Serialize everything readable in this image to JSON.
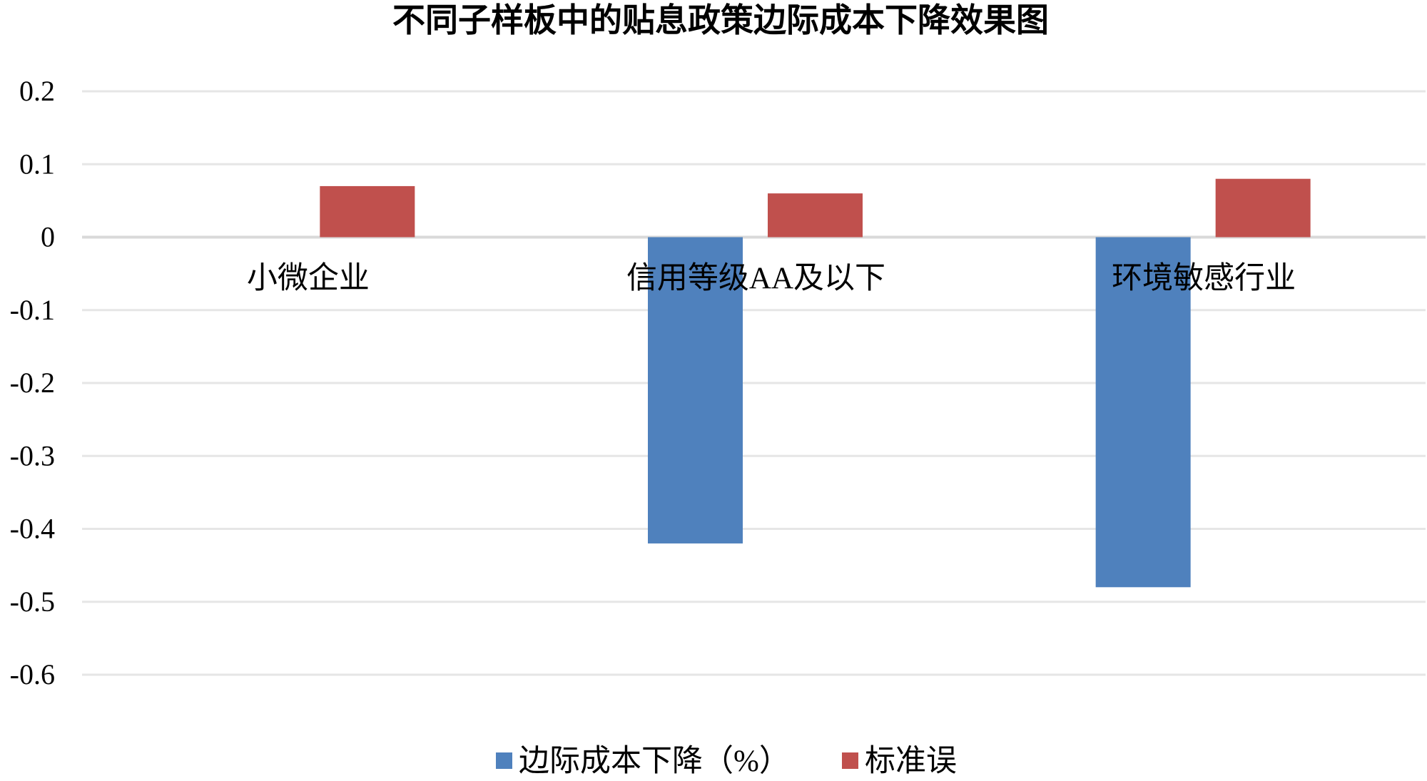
{
  "chart_data": {
    "type": "bar",
    "title": "不同子样板中的贴息政策边际成本下降效果图",
    "categories": [
      "小微企业",
      "信用等级AA及以下",
      "环境敏感行业"
    ],
    "series": [
      {
        "name": "边际成本下降（%）",
        "values": [
          null,
          -0.42,
          -0.48
        ],
        "color": "#4F81BD"
      },
      {
        "name": "标准误",
        "values": [
          0.07,
          0.06,
          0.08
        ],
        "color": "#C0504D"
      }
    ],
    "ylim": [
      -0.6,
      0.2
    ],
    "yticks": [
      0.2,
      0.1,
      0,
      -0.1,
      -0.2,
      -0.3,
      -0.4,
      -0.5,
      -0.6
    ],
    "ytick_labels": [
      "0.2",
      "0.1",
      "0",
      "-0.1",
      "-0.2",
      "-0.3",
      "-0.4",
      "-0.5",
      "-0.6"
    ],
    "xlabel": "",
    "ylabel": "",
    "grid": true,
    "legend_position": "bottom"
  }
}
